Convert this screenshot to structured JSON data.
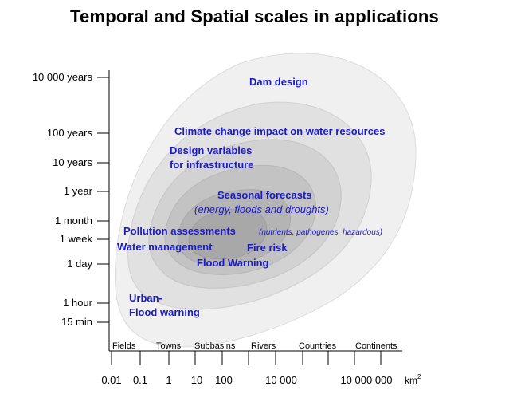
{
  "title": "Temporal and Spatial scales in applications",
  "y_axis": {
    "ticks": [
      "10 000 years",
      "100 years",
      "10 years",
      "1 year",
      "1 month",
      "1 week",
      "1 day",
      "1 hour",
      "15 min"
    ]
  },
  "x_axis": {
    "categories": [
      "Fields",
      "Towns",
      "Subbasins",
      "Rivers",
      "Countries",
      "Continents"
    ],
    "ticks": [
      "0.01",
      "0.1",
      "1",
      "10",
      "100",
      "10 000",
      "10 000 000"
    ],
    "unit": "km",
    "unit_sup": "2"
  },
  "applications": {
    "dam_design": "Dam design",
    "climate_change": "Climate  change  impact  on water resources",
    "design_variables_1": "Design  variables",
    "design_variables_2": "for infrastructure",
    "seasonal_1": "Seasonal  forecasts",
    "seasonal_2": "(energy, floods and droughts)",
    "pollution": "Pollution  assessments",
    "pollution_detail": "(nutrients, pathogenes, hazardous)",
    "water_management": "Water management",
    "fire_risk": "Fire risk",
    "flood_warning": "Flood  Warning",
    "urban_1": "Urban-",
    "urban_2": "Flood  warning"
  },
  "colors": {
    "application_text": "#1a1ac8",
    "zone_outer": "#f0f0f0",
    "zone_2": "#e1e1e1",
    "zone_3": "#d2d2d2",
    "zone_4": "#c3c3c3",
    "zone_5": "#b4b4b4",
    "zone_inner": "#a8a8a8"
  }
}
